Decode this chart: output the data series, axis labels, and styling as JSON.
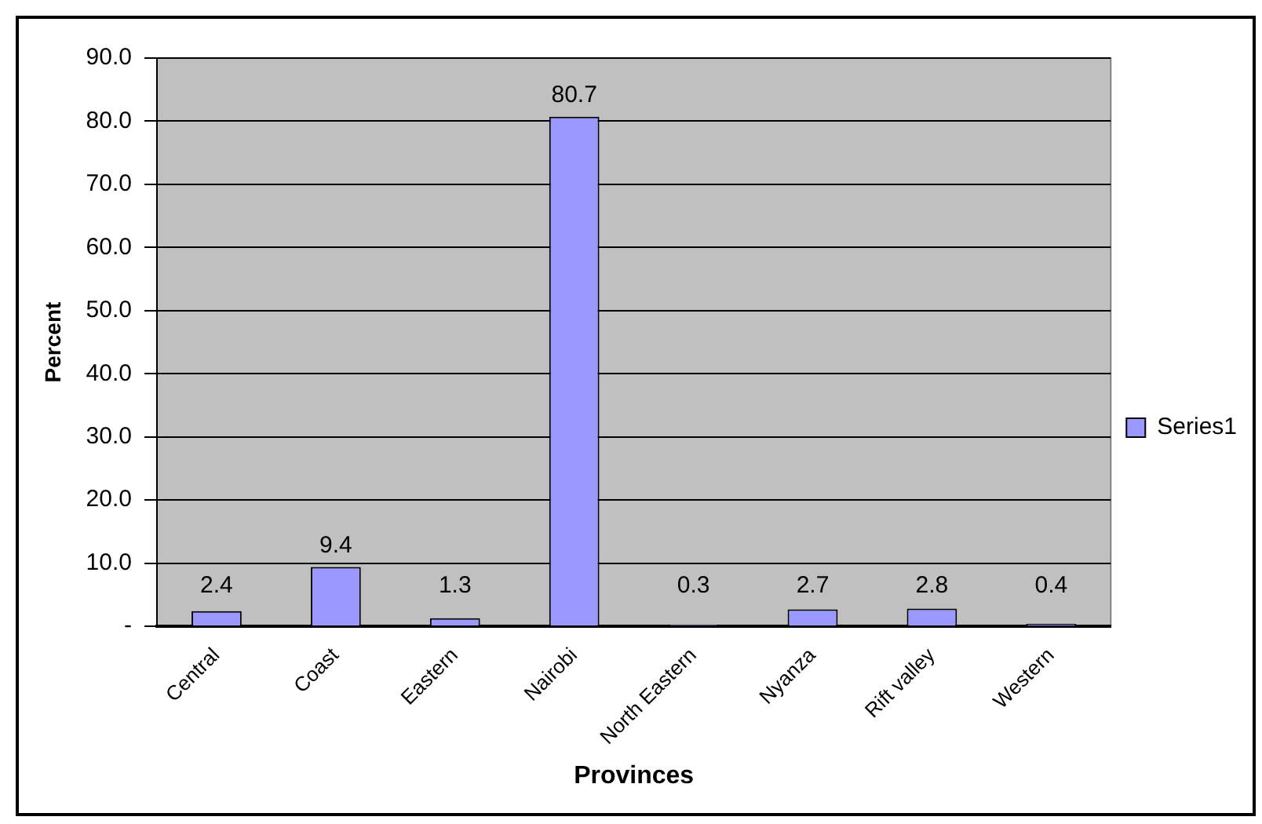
{
  "chart_data": {
    "type": "bar",
    "xlabel": "Provinces",
    "ylabel": "Percent",
    "categories": [
      "Central",
      "Coast",
      "Eastern",
      "Nairobi",
      "North Eastern",
      "Nyanza",
      "Rift valley",
      "Western"
    ],
    "series": [
      {
        "name": "Series1",
        "color": "#9999ff",
        "values": [
          2.4,
          9.4,
          1.3,
          80.7,
          0.3,
          2.7,
          2.8,
          0.4
        ]
      }
    ],
    "ylim": [
      0,
      90
    ],
    "yticks": [
      {
        "value": 0,
        "label": "-"
      },
      {
        "value": 10,
        "label": "10.0"
      },
      {
        "value": 20,
        "label": "20.0"
      },
      {
        "value": 30,
        "label": "30.0"
      },
      {
        "value": 40,
        "label": "40.0"
      },
      {
        "value": 50,
        "label": "50.0"
      },
      {
        "value": 60,
        "label": "60.0"
      },
      {
        "value": 70,
        "label": "70.0"
      },
      {
        "value": 80,
        "label": "80.0"
      },
      {
        "value": 90,
        "label": "90.0"
      }
    ],
    "grid": "y",
    "legend": "right",
    "data_labels": true
  }
}
